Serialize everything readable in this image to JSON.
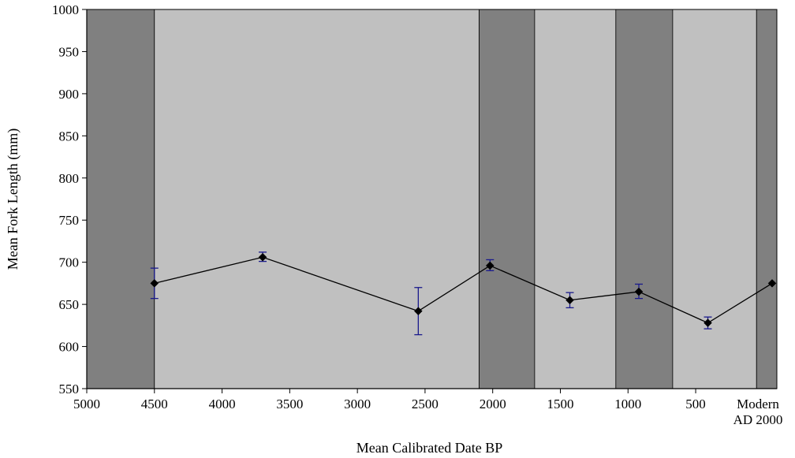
{
  "chart_data": {
    "type": "line",
    "title": "",
    "xlabel": "Mean Calibrated Date BP",
    "ylabel": "Mean Fork Length (mm)",
    "xlim": [
      5000,
      -100
    ],
    "ylim": [
      550,
      1000
    ],
    "x_axis_reversed": true,
    "x_ticks": [
      5000,
      4500,
      4000,
      3500,
      3000,
      2500,
      2000,
      1500,
      1000,
      500
    ],
    "x_tick_labels": [
      "5000",
      "4500",
      "4000",
      "3500",
      "3000",
      "2500",
      "2000",
      "1500",
      "1000",
      "500"
    ],
    "x_end_label": [
      "Modern",
      "AD 2000"
    ],
    "y_ticks": [
      550,
      600,
      650,
      700,
      750,
      800,
      850,
      900,
      950,
      1000
    ],
    "y_tick_labels": [
      "550",
      "600",
      "650",
      "700",
      "750",
      "800",
      "850",
      "900",
      "950",
      "1000"
    ],
    "grid": false,
    "legend": "none",
    "period_bands": [
      {
        "from": 5000,
        "to": 4500,
        "shade": "dark"
      },
      {
        "from": 4500,
        "to": 2100,
        "shade": "light"
      },
      {
        "from": 2100,
        "to": 1690,
        "shade": "dark"
      },
      {
        "from": 1690,
        "to": 1090,
        "shade": "light"
      },
      {
        "from": 1090,
        "to": 670,
        "shade": "dark"
      },
      {
        "from": 670,
        "to": 50,
        "shade": "light"
      },
      {
        "from": 50,
        "to": -100,
        "shade": "dark"
      }
    ],
    "series": [
      {
        "points": [
          {
            "x": 4500,
            "y": 675,
            "err_low": 657,
            "err_high": 693
          },
          {
            "x": 3700,
            "y": 706,
            "err_low": 701,
            "err_high": 712
          },
          {
            "x": 2550,
            "y": 642,
            "err_low": 614,
            "err_high": 670
          },
          {
            "x": 2020,
            "y": 696,
            "err_low": 690,
            "err_high": 703
          },
          {
            "x": 1430,
            "y": 655,
            "err_low": 646,
            "err_high": 664
          },
          {
            "x": 920,
            "y": 665,
            "err_low": 657,
            "err_high": 674
          },
          {
            "x": 410,
            "y": 628,
            "err_low": 621,
            "err_high": 635
          },
          {
            "x": -65,
            "y": 675
          }
        ]
      }
    ],
    "colors": {
      "dark_band": "#808080",
      "light_band": "#c0c0c0",
      "line": "#000000",
      "error_bar": "#1a1a8c"
    }
  }
}
